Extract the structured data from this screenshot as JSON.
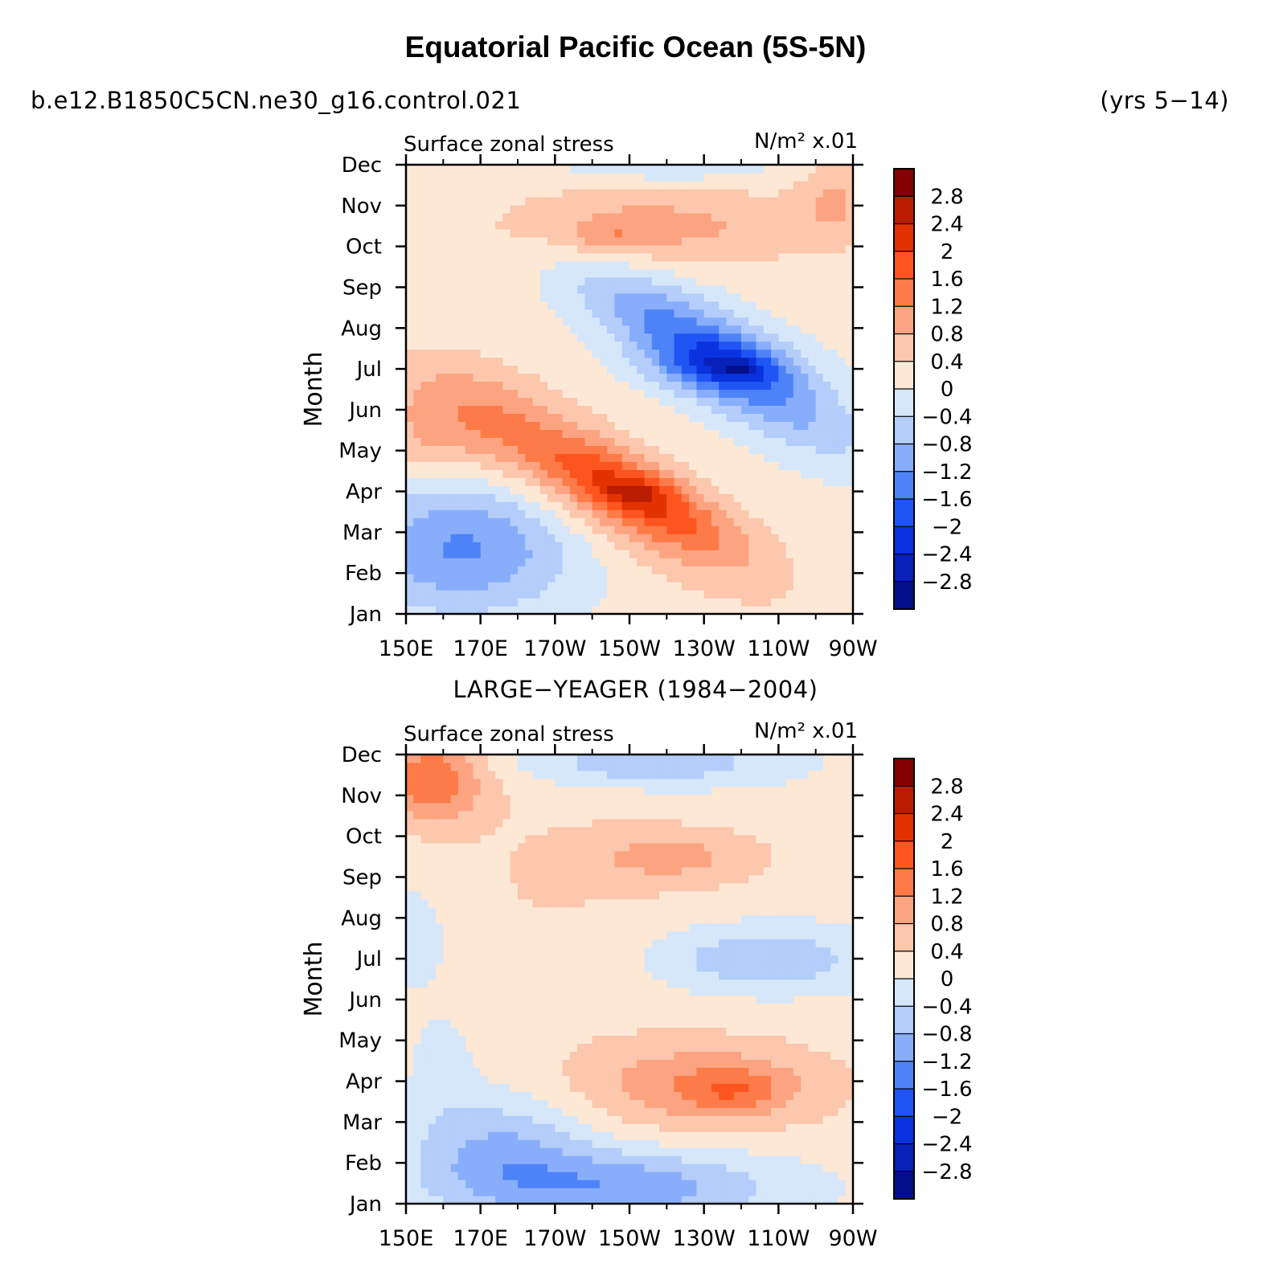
{
  "header": {
    "title": "Equatorial Pacific Ocean (5S-5N)",
    "case_name": "b.e12.B1850C5CN.ne30_g16.control.021",
    "years": "(yrs 5−14)",
    "obs_title": "LARGE−YEAGER (1984−2004)"
  },
  "chart_data": [
    {
      "type": "heatmap",
      "left_label": "Surface zonal stress",
      "right_label": "N/m² x.01",
      "ylabel": "Month",
      "x_ticks": [
        "150E",
        "170E",
        "170W",
        "150W",
        "130W",
        "110W",
        "90W"
      ],
      "x_values": [
        150,
        170,
        190,
        210,
        230,
        250,
        270
      ],
      "y_ticks": [
        "Jan",
        "Feb",
        "Mar",
        "Apr",
        "May",
        "Jun",
        "Jul",
        "Aug",
        "Sep",
        "Oct",
        "Nov",
        "Dec"
      ],
      "xlim": [
        150,
        270
      ],
      "ylim": [
        1,
        12
      ],
      "colorbar_labels": [
        "2.8",
        "2.4",
        "2",
        "1.6",
        "1.2",
        "0.8",
        "0.4",
        "0",
        "−0.4",
        "−0.8",
        "−1.2",
        "−1.6",
        "−2",
        "−2.4",
        "−2.8"
      ],
      "colorbar_colors": [
        "#850000",
        "#b91c00",
        "#e23200",
        "#fe5520",
        "#fd7b48",
        "#fca481",
        "#fcc7ac",
        "#fde8d6",
        "#d6e7fa",
        "#b4cdfa",
        "#88aefb",
        "#4e83f8",
        "#1f55f4",
        "#0a32df",
        "#0821b9",
        "#030f88"
      ],
      "blobs": [
        {
          "x": 200,
          "y": 4.3,
          "rx": 40,
          "ry": 1.3,
          "v": 1.2,
          "rot": -0.05
        },
        {
          "x": 215,
          "y": 3.8,
          "rx": 25,
          "ry": 0.8,
          "v": 1.0,
          "rot": -0.04
        },
        {
          "x": 212,
          "y": 4.0,
          "rx": 10,
          "ry": 0.35,
          "v": 0.6
        },
        {
          "x": 233,
          "y": 7.3,
          "rx": 35,
          "ry": 1.2,
          "v": -1.8,
          "rot": -0.05
        },
        {
          "x": 235,
          "y": 7.1,
          "rx": 18,
          "ry": 0.6,
          "v": -0.9
        },
        {
          "x": 240,
          "y": 7.0,
          "rx": 6,
          "ry": 0.2,
          "v": -0.5
        },
        {
          "x": 165,
          "y": 2.6,
          "rx": 30,
          "ry": 1.6,
          "v": -1.4
        },
        {
          "x": 160,
          "y": 5.9,
          "rx": 22,
          "ry": 1.2,
          "v": 0.5
        },
        {
          "x": 155,
          "y": 5.0,
          "rx": 15,
          "ry": 0.8,
          "v": 0.3
        },
        {
          "x": 215,
          "y": 10.5,
          "rx": 45,
          "ry": 1.0,
          "v": 0.8
        },
        {
          "x": 205,
          "y": 10.2,
          "rx": 10,
          "ry": 0.4,
          "v": 0.5
        },
        {
          "x": 265,
          "y": 11.2,
          "rx": 10,
          "ry": 1.0,
          "v": 0.6
        },
        {
          "x": 220,
          "y": 12.0,
          "rx": 30,
          "ry": 0.5,
          "v": -0.5
        }
      ]
    },
    {
      "type": "heatmap",
      "left_label": "Surface zonal stress",
      "right_label": "N/m² x.01",
      "ylabel": "Month",
      "x_ticks": [
        "150E",
        "170E",
        "170W",
        "150W",
        "130W",
        "110W",
        "90W"
      ],
      "x_values": [
        150,
        170,
        190,
        210,
        230,
        250,
        270
      ],
      "y_ticks": [
        "Jan",
        "Feb",
        "Mar",
        "Apr",
        "May",
        "Jun",
        "Jul",
        "Aug",
        "Sep",
        "Oct",
        "Nov",
        "Dec"
      ],
      "xlim": [
        150,
        270
      ],
      "ylim": [
        1,
        12
      ],
      "colorbar_labels": [
        "2.8",
        "2.4",
        "2",
        "1.6",
        "1.2",
        "0.8",
        "0.4",
        "0",
        "−0.4",
        "−0.8",
        "−1.2",
        "−1.6",
        "−2",
        "−2.4",
        "−2.8"
      ],
      "colorbar_colors": [
        "#850000",
        "#b91c00",
        "#e23200",
        "#fe5520",
        "#fd7b48",
        "#fca481",
        "#fcc7ac",
        "#fde8d6",
        "#d6e7fa",
        "#b4cdfa",
        "#88aefb",
        "#4e83f8",
        "#1f55f4",
        "#0a32df",
        "#0821b9",
        "#030f88"
      ],
      "blobs": [
        {
          "x": 230,
          "y": 3.9,
          "rx": 35,
          "ry": 1.1,
          "v": 1.0
        },
        {
          "x": 238,
          "y": 3.8,
          "rx": 12,
          "ry": 0.5,
          "v": 0.6
        },
        {
          "x": 157,
          "y": 11.4,
          "rx": 14,
          "ry": 1.0,
          "v": 1.4
        },
        {
          "x": 222,
          "y": 9.5,
          "rx": 25,
          "ry": 0.7,
          "v": 0.7
        },
        {
          "x": 188,
          "y": 8.5,
          "rx": 40,
          "ry": 3.5,
          "v": 0.25
        },
        {
          "x": 245,
          "y": 7.0,
          "rx": 30,
          "ry": 0.8,
          "v": -0.9
        },
        {
          "x": 215,
          "y": 11.8,
          "rx": 35,
          "ry": 0.6,
          "v": -0.9
        },
        {
          "x": 175,
          "y": 2.3,
          "rx": 25,
          "ry": 1.4,
          "v": -1.0
        },
        {
          "x": 210,
          "y": 1.4,
          "rx": 40,
          "ry": 0.9,
          "v": -1.2
        },
        {
          "x": 153,
          "y": 7.5,
          "rx": 8,
          "ry": 1.2,
          "v": -0.6
        },
        {
          "x": 160,
          "y": 4.5,
          "rx": 8,
          "ry": 1.2,
          "v": -0.4
        }
      ]
    }
  ]
}
